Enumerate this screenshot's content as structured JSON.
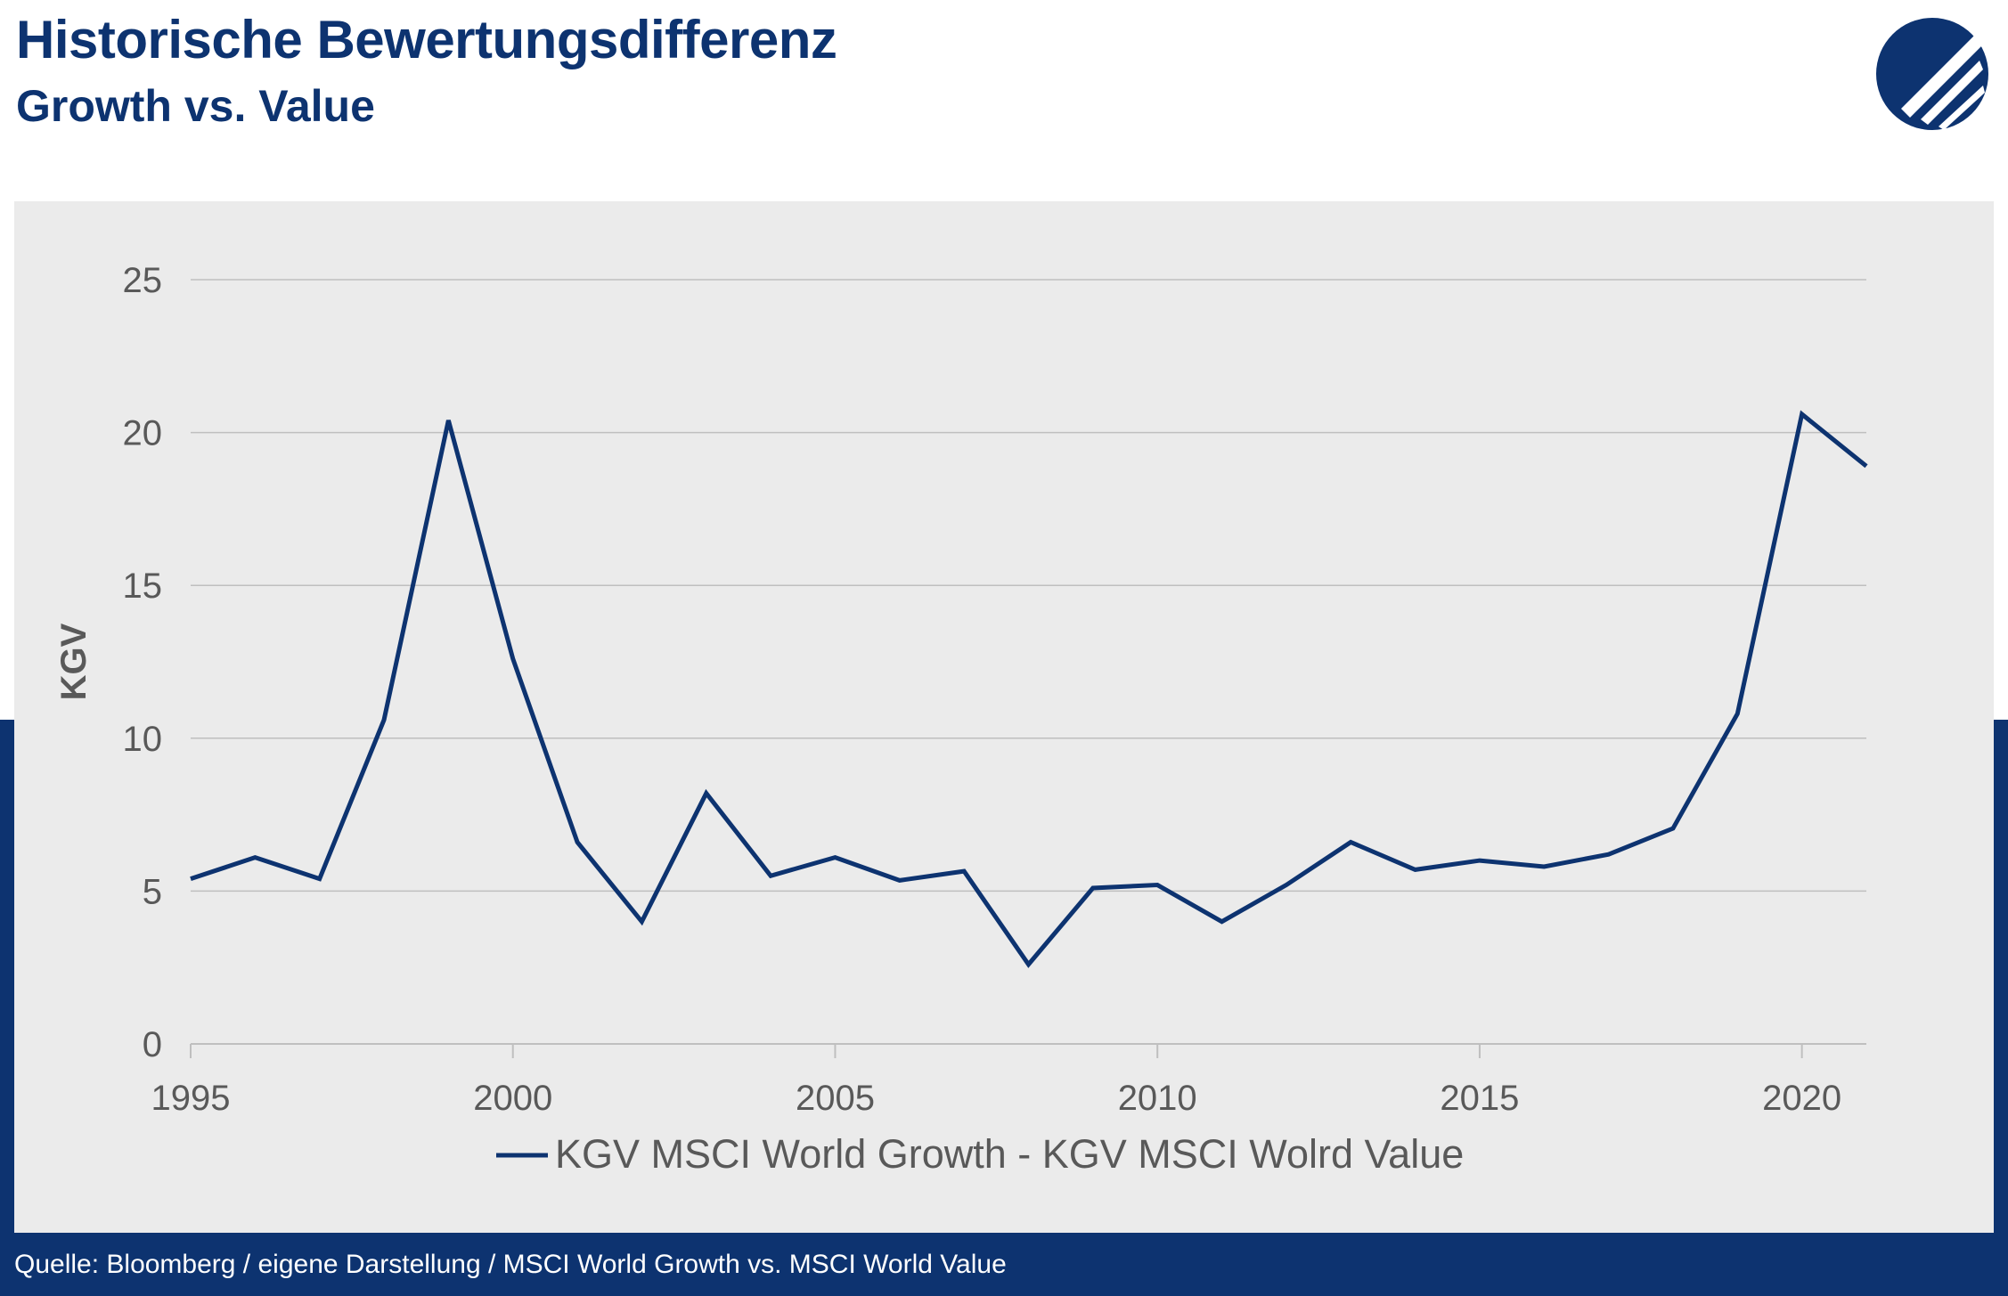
{
  "header": {
    "title": "Historische Bewertungsdifferenz",
    "subtitle": "Growth vs. Value"
  },
  "logo": {
    "icon": "company-logo-icon"
  },
  "footer": {
    "source": "Quelle: Bloomberg / eigene Darstellung / MSCI World Growth vs. MSCI World Value"
  },
  "colors": {
    "brand_navy": "#0d3370",
    "panel_bg": "#ebebeb",
    "gridline": "#bfbfbf",
    "tick_text": "#595959"
  },
  "chart_data": {
    "type": "line",
    "title": "Historische Bewertungsdifferenz",
    "subtitle": "Growth vs. Value",
    "xlabel": "",
    "ylabel": "KGV",
    "xlim": [
      1995,
      2021
    ],
    "ylim": [
      0,
      25
    ],
    "x_ticks": [
      "1995",
      "2000",
      "2005",
      "2010",
      "2015",
      "2020"
    ],
    "y_ticks": [
      "0",
      "5",
      "10",
      "15",
      "20",
      "25"
    ],
    "grid": true,
    "legend": "bottom",
    "series": [
      {
        "name": "KGV MSCI World Growth - KGV MSCI Wolrd Value",
        "color": "#0d3370",
        "x": [
          1995,
          1996,
          1997,
          1998,
          1999,
          2000,
          2001,
          2002,
          2003,
          2004,
          2005,
          2006,
          2007,
          2008,
          2009,
          2010,
          2011,
          2012,
          2013,
          2014,
          2015,
          2016,
          2017,
          2018,
          2019,
          2020,
          2021
        ],
        "values": [
          5.4,
          6.1,
          5.4,
          10.6,
          20.4,
          12.6,
          6.6,
          4.0,
          8.2,
          5.5,
          6.1,
          5.35,
          5.65,
          2.6,
          5.1,
          5.2,
          4.0,
          5.2,
          6.6,
          5.7,
          6.0,
          5.8,
          6.2,
          7.05,
          10.8,
          20.6,
          18.9
        ]
      }
    ]
  }
}
